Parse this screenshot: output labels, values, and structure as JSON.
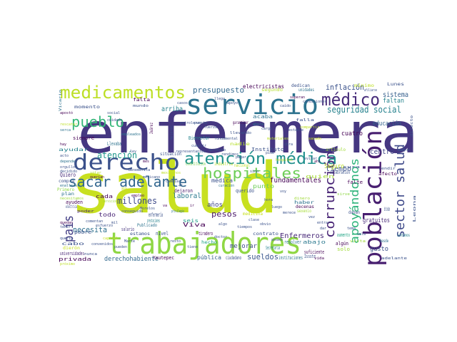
{
  "words": [
    {
      "text": "salud",
      "color": "#c8e020"
    },
    {
      "text": "enfermera",
      "color": "#453781"
    },
    {
      "text": "trabajadores",
      "color": "#8fd744"
    },
    {
      "text": "servicio",
      "color": "#2c728e"
    },
    {
      "text": "derecho",
      "color": "#3b518b"
    },
    {
      "text": "población",
      "color": "#481f70"
    },
    {
      "text": "atención médica",
      "color": "#21908d"
    },
    {
      "text": "medicamentos",
      "color": "#bddf26"
    },
    {
      "text": "médico",
      "color": "#472c7a"
    },
    {
      "text": "hospitales",
      "color": "#6ece58"
    },
    {
      "text": "sacar adelante",
      "color": "#31668e"
    },
    {
      "text": "pueblo",
      "color": "#35b779"
    },
    {
      "text": "corrupción",
      "color": "#482475"
    },
    {
      "text": "sector salud",
      "color": "#3e4989"
    },
    {
      "text": "apoyándonos",
      "color": "#2fb47c"
    },
    {
      "text": "país",
      "color": "#433e85"
    },
    {
      "text": "presupuesto",
      "color": "#31688e"
    },
    {
      "text": "seguridad social",
      "color": "#26828e"
    },
    {
      "text": "inflación",
      "color": "#3b528b"
    },
    {
      "text": "atención",
      "color": "#1f978b"
    },
    {
      "text": "millones",
      "color": "#3e4a89"
    },
    {
      "text": "necesita",
      "color": "#2d708e"
    },
    {
      "text": "fundamentales",
      "color": "#440154"
    },
    {
      "text": "pesos",
      "color": "#481668"
    },
    {
      "text": "sueldos",
      "color": "#39568c"
    },
    {
      "text": "Enfermeros",
      "color": "#482878"
    },
    {
      "text": "tiempo",
      "color": "#3b528b"
    },
    {
      "text": "sistema",
      "color": "#355f8d"
    },
    {
      "text": "faltan",
      "color": "#25848e"
    },
    {
      "text": "educación",
      "color": "#33638d"
    },
    {
      "text": "cuatro",
      "color": "#440154"
    },
    {
      "text": "centro",
      "color": "#414487"
    },
    {
      "text": "derechohabiente",
      "color": "#31688e"
    },
    {
      "text": "laboral",
      "color": "#29798e"
    },
    {
      "text": "años",
      "color": "#3f4788"
    },
    {
      "text": "mejorar",
      "color": "#3e4c8a"
    },
    {
      "text": "arriba",
      "color": "#26828e"
    },
    {
      "text": "electricistas",
      "color": "#440154"
    },
    {
      "text": "pública",
      "color": "#34618d"
    },
    {
      "text": "gusto",
      "color": "#3b528b"
    },
    {
      "text": "gratuitos",
      "color": "#482878"
    },
    {
      "text": "Seguro",
      "color": "#bddf26"
    },
    {
      "text": "quien",
      "color": "#a5db36"
    },
    {
      "text": "enfermería",
      "color": "#3b528b"
    },
    {
      "text": "prestaciones",
      "color": "#26828e"
    },
    {
      "text": "Viva",
      "color": "#440154"
    },
    {
      "text": "seis",
      "color": "#1f9e89"
    },
    {
      "text": "salario",
      "color": "#46337e"
    },
    {
      "text": "nivel",
      "color": "#3b528b"
    },
    {
      "text": "todo",
      "color": "#482475"
    },
    {
      "text": "cada",
      "color": "#440154"
    },
    {
      "text": "pobre",
      "color": "#3b528b"
    },
    {
      "text": "ayuden",
      "color": "#440154"
    },
    {
      "text": "Quiero",
      "color": "#472c7a"
    },
    {
      "text": "médica",
      "color": "#3b528b"
    },
    {
      "text": "punto",
      "color": "#6ece58"
    },
    {
      "text": "querido",
      "color": "#3b528b"
    },
    {
      "text": "dejaron",
      "color": "#481a6c"
    },
    {
      "text": "siempre",
      "color": "#440154"
    },
    {
      "text": "Llevaba",
      "color": "#2c728e"
    },
    {
      "text": "Bienestar",
      "color": "#25848e"
    },
    {
      "text": "acaba",
      "color": "#2c728e"
    },
    {
      "text": "Instituto",
      "color": "#3b528b"
    },
    {
      "text": "resolver",
      "color": "#2a788e"
    },
    {
      "text": "universidades",
      "color": "#482475"
    },
    {
      "text": "privada",
      "color": "#440154"
    },
    {
      "text": "ciudadano",
      "color": "#3b528b"
    },
    {
      "text": "instituciones",
      "color": "#2c728e"
    },
    {
      "text": "Issste",
      "color": "#3b528b"
    },
    {
      "text": "suficiente",
      "color": "#440154"
    },
    {
      "text": "solo",
      "color": "#a0da39"
    },
    {
      "text": "aumento",
      "color": "#21a585"
    },
    {
      "text": "abajo",
      "color": "#2a788e"
    },
    {
      "text": "algún",
      "color": "#440154"
    },
    {
      "text": "Secretaría",
      "color": "#25838e"
    },
    {
      "text": "falte",
      "color": "#440154"
    },
    {
      "text": "Lunes",
      "color": "#3b528b"
    },
    {
      "text": "mínimo",
      "color": "#bddf26"
    },
    {
      "text": "dedican",
      "color": "#3b528b"
    },
    {
      "text": "unidades",
      "color": "#2c728e"
    },
    {
      "text": "segundo",
      "color": "#b5de2b"
    },
    {
      "text": "ayudar",
      "color": "#26828e"
    },
    {
      "text": "situación",
      "color": "#3b528b"
    },
    {
      "text": "Constitución",
      "color": "#7ad151"
    },
    {
      "text": "industria",
      "color": "#b5de2b"
    },
    {
      "text": "nacional",
      "color": "#bddf26"
    },
    {
      "text": "artículo",
      "color": "#a0da39"
    },
    {
      "text": "afecto",
      "color": "#440154"
    },
    {
      "text": "Publicado",
      "color": "#2c728e"
    },
    {
      "text": "tiradero",
      "color": "#440154"
    },
    {
      "text": "contrato",
      "color": "#3b528b"
    },
    {
      "text": "hecho",
      "color": "#21a585"
    },
    {
      "text": "celebración",
      "color": "#3b528b"
    },
    {
      "text": "dierón",
      "color": "#c8e020"
    },
    {
      "text": "Yautepec",
      "color": "#440154"
    },
    {
      "text": "Primero",
      "color": "#8fd744"
    },
    {
      "text": "medicina",
      "color": "#c8e020"
    },
    {
      "text": "sexenio",
      "color": "#a5db36"
    },
    {
      "text": "haber",
      "color": "#2c728e"
    },
    {
      "text": "decenas",
      "color": "#440154"
    },
    {
      "text": "contamos",
      "color": "#26828e"
    },
    {
      "text": "daban",
      "color": "#3b528b"
    },
    {
      "text": "afiliarse",
      "color": "#3b528b"
    },
    {
      "text": "eléctrica",
      "color": "#3b528b"
    },
    {
      "text": "plan",
      "color": "#2c728e"
    },
    {
      "text": "poder",
      "color": "#482475"
    },
    {
      "text": "cabo",
      "color": "#3b528b"
    },
    {
      "text": "falta",
      "color": "#440154"
    },
    {
      "text": "mundo",
      "color": "#3b528b"
    },
    {
      "text": "nunca",
      "color": "#3b528b"
    },
    {
      "text": "compra",
      "color": "#3b528b"
    },
    {
      "text": "votar",
      "color": "#b5de2b"
    },
    {
      "text": "querían",
      "color": "#440154"
    },
    {
      "text": "estamos",
      "color": "#3b528b"
    },
    {
      "text": "privilegio",
      "color": "#2c728e"
    },
    {
      "text": "dinero",
      "color": "#a0da39"
    },
    {
      "text": "pensando",
      "color": "#3b528b"
    },
    {
      "text": "servicios",
      "color": "#a0da39"
    },
    {
      "text": "sirve",
      "color": "#8fd744"
    },
    {
      "text": "vista",
      "color": "#a0da39"
    },
    {
      "text": "Desde",
      "color": "#2c728e"
    },
    {
      "text": "vida",
      "color": "#440154"
    },
    {
      "text": "nadie",
      "color": "#b5de2b"
    },
    {
      "text": "momento",
      "color": "#3b528b"
    },
    {
      "text": "garantizar",
      "color": "#440154"
    },
    {
      "text": "integran",
      "color": "#3b528b"
    },
    {
      "text": "llevando",
      "color": "#3b528b"
    },
    {
      "text": "rendir",
      "color": "#3b528b"
    },
    {
      "text": "adelante",
      "color": "#3b528b"
    },
    {
      "text": "directo",
      "color": "#3b528b"
    },
    {
      "text": "Leona",
      "color": "#3b528b"
    },
    {
      "text": "Vicario",
      "color": "#2c728e"
    },
    {
      "text": "falla",
      "color": "#3b528b"
    },
    {
      "text": "cura",
      "color": "#3b528b"
    },
    {
      "text": "curación",
      "color": "#2c728e"
    },
    {
      "text": "Juárez",
      "color": "#440154"
    },
    {
      "text": "mejores",
      "color": "#3b528b"
    },
    {
      "text": "gente",
      "color": "#c8e020"
    },
    {
      "text": "brindan",
      "color": "#3b528b"
    },
    {
      "text": "apostó",
      "color": "#440154"
    },
    {
      "text": "rescatar",
      "color": "#bddf26"
    },
    {
      "text": "serca",
      "color": "#2c728e"
    },
    {
      "text": "hay",
      "color": "#440154"
    },
    {
      "text": "acto",
      "color": "#3b528b"
    },
    {
      "text": "depende",
      "color": "#2c728e"
    },
    {
      "text": "orgullo",
      "color": "#3b528b"
    },
    {
      "text": "decidido",
      "color": "#3b528b"
    },
    {
      "text": "enaltecer",
      "color": "#2c728e"
    },
    {
      "text": "necesitamos",
      "color": "#a0da39"
    },
    {
      "text": "quedan",
      "color": "#440154"
    },
    {
      "text": "tener",
      "color": "#3b528b"
    },
    {
      "text": "quería",
      "color": "#3b528b"
    },
    {
      "text": "próximo",
      "color": "#bddf26"
    },
    {
      "text": "social",
      "color": "#3b528b"
    },
    {
      "text": "cuidado",
      "color": "#3b528b"
    },
    {
      "text": "empleados",
      "color": "#2c728e"
    },
    {
      "text": "ley",
      "color": "#3b528b"
    },
    {
      "text": "mes",
      "color": "#440154"
    },
    {
      "text": "Benemérita",
      "color": "#3b528b"
    },
    {
      "text": "mexicano",
      "color": "#3b528b"
    },
    {
      "text": "mexicanos",
      "color": "#bddf26"
    },
    {
      "text": "representantes",
      "color": "#3b528b"
    },
    {
      "text": "petroleros",
      "color": "#3b528b"
    },
    {
      "text": "puerta",
      "color": "#3b528b"
    },
    {
      "text": "fuerza",
      "color": "#3b528b"
    },
    {
      "text": "fundamental",
      "color": "#3b528b"
    },
    {
      "text": "rendimos",
      "color": "#3b528b"
    },
    {
      "text": "ahora",
      "color": "#2c728e"
    },
    {
      "text": "cargo",
      "color": "#3b528b"
    },
    {
      "text": "materiales",
      "color": "#bddf26"
    },
    {
      "text": "pide",
      "color": "#3b528b"
    },
    {
      "text": "hospital",
      "color": "#bddf26"
    },
    {
      "text": "obra",
      "color": "#3b528b"
    },
    {
      "text": "estable",
      "color": "#3b528b"
    },
    {
      "text": "compartir",
      "color": "#bddf26"
    },
    {
      "text": "sacado",
      "color": "#c8e020"
    },
    {
      "text": "manera",
      "color": "#3b528b"
    },
    {
      "text": "evitar",
      "color": "#3b528b"
    },
    {
      "text": "ahí",
      "color": "#440154"
    },
    {
      "text": "superan",
      "color": "#440154"
    },
    {
      "text": "condiciones",
      "color": "#3b528b"
    },
    {
      "text": "caído",
      "color": "#3b528b"
    },
    {
      "text": "llega",
      "color": "#3b528b"
    },
    {
      "text": "apoyo",
      "color": "#3b528b"
    },
    {
      "text": "casos",
      "color": "#3b528b"
    },
    {
      "text": "cumplir",
      "color": "#3b528b"
    },
    {
      "text": "aprobado",
      "color": "#3b528b"
    },
    {
      "text": "pagar",
      "color": "#3b528b"
    },
    {
      "text": "sino",
      "color": "#3b528b"
    },
    {
      "text": "cambiar",
      "color": "#3b528b"
    },
    {
      "text": "4°",
      "color": "#3b528b"
    },
    {
      "text": "ir",
      "color": "#440154"
    },
    {
      "text": "va",
      "color": "#440154"
    },
    {
      "text": "Morelos",
      "color": "#3b528b"
    },
    {
      "text": "empleo",
      "color": "#440154"
    },
    {
      "text": "conseguido",
      "color": "#3b528b"
    },
    {
      "text": "mil",
      "color": "#3b528b"
    },
    {
      "text": "comentan",
      "color": "#3b528b"
    },
    {
      "text": "esfuerzo",
      "color": "#3b528b"
    },
    {
      "text": "capital",
      "color": "#c8e020"
    },
    {
      "text": "convenidos",
      "color": "#3b528b"
    },
    {
      "text": "pueden",
      "color": "#3b528b"
    },
    {
      "text": "Marte",
      "color": "#3b528b"
    },
    {
      "text": "resto",
      "color": "#3b528b"
    },
    {
      "text": "tiene",
      "color": "#3b528b"
    },
    {
      "text": "doctor",
      "color": "#3b528b"
    },
    {
      "text": "algo",
      "color": "#3b528b"
    },
    {
      "text": "tiempos",
      "color": "#3b528b"
    },
    {
      "text": "clase",
      "color": "#3b528b"
    },
    {
      "text": "obvio",
      "color": "#3b528b"
    },
    {
      "text": "luego",
      "color": "#3b528b"
    },
    {
      "text": "hora",
      "color": "#3b528b"
    },
    {
      "text": "voy",
      "color": "#3b528b"
    },
    {
      "text": "merece",
      "color": "#3b528b"
    },
    {
      "text": "vez",
      "color": "#3b528b"
    },
    {
      "text": "entrar",
      "color": "#3b528b"
    },
    {
      "text": "dar",
      "color": "#3b528b"
    },
    {
      "text": "tema",
      "color": "#3b528b"
    },
    {
      "text": "vela",
      "color": "#3b528b"
    }
  ]
}
